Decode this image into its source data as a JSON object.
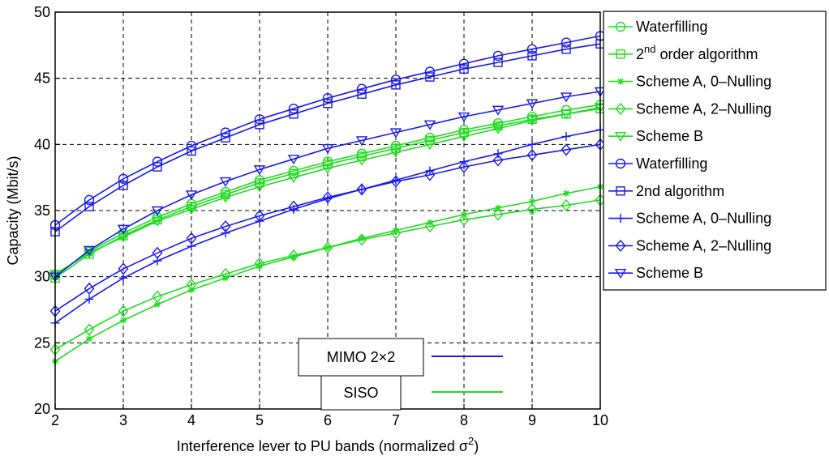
{
  "chart_data": {
    "type": "line",
    "xlabel": "Interference lever to PU bands (normalized σ",
    "xlabel_sup": "2",
    "xlabel_end": ")",
    "ylabel": "Capacity (Mbit/s)",
    "xlim": [
      2,
      10
    ],
    "ylim": [
      20,
      50
    ],
    "xticks": [
      2,
      3,
      4,
      5,
      6,
      7,
      8,
      9,
      10
    ],
    "yticks": [
      20,
      25,
      30,
      35,
      40,
      45,
      50
    ],
    "grid": true,
    "legend_position": "outside-right",
    "x": [
      2,
      2.5,
      3,
      3.5,
      4,
      4.5,
      5,
      5.5,
      6,
      6.5,
      7,
      7.5,
      8,
      8.5,
      9,
      9.5,
      10
    ],
    "series": [
      {
        "name": "Waterfilling",
        "group": "SISO",
        "color": "#22dd22",
        "marker": "circle",
        "values": [
          30.1,
          31.9,
          33.3,
          34.5,
          35.5,
          36.4,
          37.3,
          38.0,
          38.7,
          39.3,
          39.9,
          40.5,
          41.1,
          41.6,
          42.1,
          42.6,
          43.0
        ]
      },
      {
        "name": "2",
        "name_sup": "nd",
        "name_rest": " order algorithm",
        "group": "SISO",
        "color": "#22dd22",
        "marker": "square",
        "values": [
          29.9,
          31.7,
          33.1,
          34.3,
          35.3,
          36.2,
          37.1,
          37.8,
          38.5,
          39.1,
          39.7,
          40.3,
          40.9,
          41.4,
          41.9,
          42.3,
          42.7
        ]
      },
      {
        "name": "Scheme A, 0–Nulling",
        "group": "SISO",
        "color": "#22dd22",
        "marker": "star",
        "values": [
          23.6,
          25.3,
          26.7,
          27.9,
          29.0,
          29.9,
          30.8,
          31.5,
          32.2,
          32.9,
          33.5,
          34.1,
          34.7,
          35.2,
          35.7,
          36.3,
          36.8
        ]
      },
      {
        "name": "Scheme A, 2–Nulling",
        "group": "SISO",
        "color": "#22dd22",
        "marker": "diamond",
        "values": [
          24.5,
          26.0,
          27.4,
          28.5,
          29.4,
          30.2,
          31.0,
          31.6,
          32.2,
          32.8,
          33.3,
          33.8,
          34.3,
          34.7,
          35.1,
          35.4,
          35.8
        ]
      },
      {
        "name": "Scheme B",
        "group": "SISO",
        "color": "#22dd22",
        "marker": "triangle-down",
        "values": [
          30.2,
          31.8,
          33.0,
          34.2,
          35.1,
          36.0,
          36.8,
          37.5,
          38.2,
          38.8,
          39.4,
          40.0,
          40.6,
          41.2,
          41.8,
          42.3,
          42.8
        ]
      },
      {
        "name": "Waterfilling",
        "group": "MIMO 2x2",
        "color": "#1a1aee",
        "marker": "circle",
        "values": [
          33.9,
          35.8,
          37.4,
          38.7,
          39.9,
          40.9,
          41.9,
          42.7,
          43.5,
          44.2,
          44.9,
          45.5,
          46.1,
          46.7,
          47.2,
          47.7,
          48.2
        ]
      },
      {
        "name": "2nd algorithm",
        "group": "MIMO 2x2",
        "color": "#1a1aee",
        "marker": "square",
        "values": [
          33.4,
          35.3,
          36.9,
          38.3,
          39.5,
          40.5,
          41.5,
          42.3,
          43.1,
          43.8,
          44.5,
          45.1,
          45.7,
          46.2,
          46.7,
          47.2,
          47.6
        ]
      },
      {
        "name": "Scheme A, 0–Nulling",
        "group": "MIMO 2x2",
        "color": "#1a1aee",
        "marker": "plus",
        "values": [
          26.5,
          28.3,
          29.9,
          31.2,
          32.3,
          33.3,
          34.2,
          35.1,
          35.9,
          36.6,
          37.3,
          38.0,
          38.7,
          39.3,
          40.0,
          40.6,
          41.1
        ]
      },
      {
        "name": "Scheme A, 2–Nulling",
        "group": "MIMO 2x2",
        "color": "#1a1aee",
        "marker": "diamond",
        "values": [
          27.4,
          29.1,
          30.6,
          31.8,
          32.9,
          33.8,
          34.6,
          35.3,
          36.0,
          36.6,
          37.2,
          37.7,
          38.3,
          38.8,
          39.2,
          39.6,
          40.0
        ]
      },
      {
        "name": "Scheme B",
        "group": "MIMO 2x2",
        "color": "#1a1aee",
        "marker": "triangle-down",
        "values": [
          30.0,
          32.0,
          33.6,
          35.0,
          36.2,
          37.2,
          38.1,
          38.9,
          39.7,
          40.3,
          40.9,
          41.5,
          42.1,
          42.6,
          43.1,
          43.6,
          44.0
        ]
      }
    ],
    "annotations": [
      {
        "text": "MIMO 2×2",
        "color": "#1a1aee"
      },
      {
        "text": "SISO",
        "color": "#22dd22"
      }
    ]
  }
}
